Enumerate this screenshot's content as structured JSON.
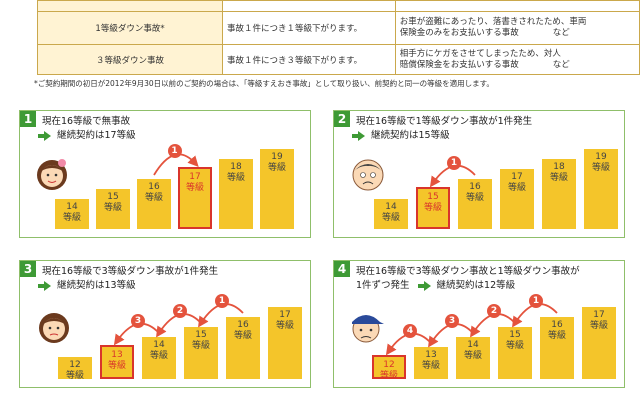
{
  "table": {
    "rows": [
      {
        "type": "",
        "desc": "",
        "ex1": "",
        "ex2": ""
      },
      {
        "type": "1等級ダウン事故*",
        "desc": "事故１件につき１等級下がります。",
        "ex1": "お車が盗難にあったり、落書きされたため、車両",
        "ex2": "保険金のみをお支払いする事故　　　　など"
      },
      {
        "type": "３等級ダウン事故",
        "desc": "事故１件につき３等級下がります。",
        "ex1": "相手方にケガをさせてしまったため、対人",
        "ex2": "賠償保険金をお支払いする事故　　　　など"
      }
    ]
  },
  "note": "*ご契約期間の初日が2012年9月30日以前のご契約の場合は、「等級すえおき事故」として取り扱い、前契約と同一の等級を適用します。",
  "grade_label": "等級",
  "panels": [
    {
      "num": "1",
      "title": "現在16等級で無事故",
      "sub": "継続契約は17等級",
      "bars": [
        "14",
        "15",
        "16",
        "17",
        "18",
        "19"
      ],
      "hl": "17",
      "face": "woman-smile"
    },
    {
      "num": "2",
      "title": "現在16等級で1等級ダウン事故が1件発生",
      "sub": "継続契約は15等級",
      "bars": [
        "14",
        "15",
        "16",
        "17",
        "18",
        "19"
      ],
      "hl": "15",
      "face": "man-sad"
    },
    {
      "num": "3",
      "title": "現在16等級で3等級ダウン事故が1件発生",
      "sub": "継続契約は13等級",
      "bars": [
        "12",
        "13",
        "14",
        "15",
        "16",
        "17"
      ],
      "hl": "13",
      "face": "woman-worried"
    },
    {
      "num": "4",
      "title": "現在16等級で3等級ダウン事故と1等級ダウン事故が",
      "sub": "1件ずつ発生",
      "sub2": "継続契約は12等級",
      "bars": [
        "12",
        "13",
        "14",
        "15",
        "16",
        "17"
      ],
      "hl": "12",
      "face": "man-cap"
    }
  ],
  "badges": [
    "1",
    "2",
    "3",
    "4"
  ],
  "colors": {
    "bar": "#f4c52a",
    "highlight": "#d9352b",
    "accent": "#3e9a35",
    "badge": "#e4533d"
  }
}
